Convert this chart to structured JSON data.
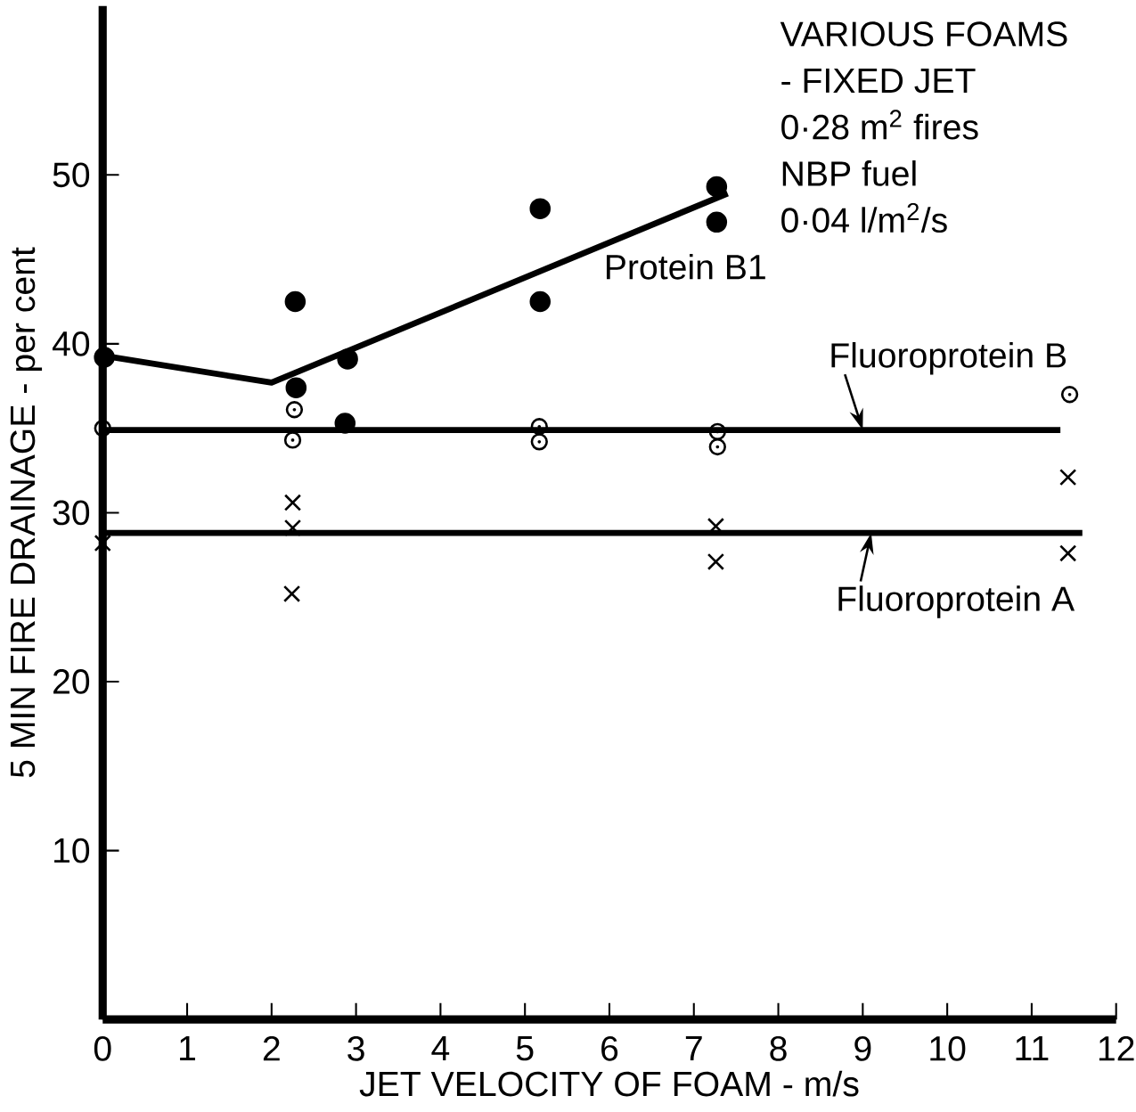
{
  "chart_data": {
    "type": "scatter",
    "title": "VARIOUS FOAMS",
    "subtitle": "- FIXED JET",
    "xlabel": "JET VELOCITY OF FOAM - m/s",
    "ylabel": "5 MIN FIRE DRAINAGE - per cent",
    "xlim": [
      0,
      12
    ],
    "ylim": [
      0,
      60
    ],
    "xticks": [
      0,
      1,
      2,
      3,
      4,
      5,
      6,
      7,
      8,
      9,
      10,
      11,
      12
    ],
    "yticks": [
      10,
      20,
      30,
      40,
      50
    ],
    "series": [
      {
        "marker": "circle",
        "color": "#000000",
        "x": [
          0.02,
          2.28,
          2.29,
          2.9,
          2.87,
          5.18,
          5.18,
          7.27,
          7.27
        ],
        "values": [
          39.2,
          42.5,
          37.4,
          39.1,
          35.3,
          48.0,
          42.5,
          49.3,
          47.2
        ]
      },
      {
        "marker": "circle",
        "color": "#000000",
        "x": [
          0,
          2.27,
          2.25,
          5.17,
          5.17,
          7.28,
          7.28,
          11.45
        ],
        "values": [
          35.0,
          36.1,
          34.3,
          35.1,
          34.2,
          34.8,
          33.9,
          37.0
        ]
      },
      {
        "marker": "cross",
        "color": "#000000",
        "x": [
          0,
          2.25,
          2.25,
          2.24,
          7.26,
          7.26,
          11.43,
          11.43
        ],
        "values": [
          28.2,
          30.6,
          29.1,
          25.2,
          29.2,
          27.1,
          32.1,
          27.6
        ]
      },
      {
        "type": "line",
        "marker": "none",
        "line_style": "solid",
        "color": "#000000",
        "x": [
          0,
          2,
          7.4
        ],
        "values": [
          39.3,
          37.7,
          48.9
        ]
      },
      {
        "type": "line",
        "marker": "none",
        "line_style": "solid",
        "color": "#000000",
        "x": [
          0,
          11.34
        ],
        "values": [
          34.9,
          34.9
        ]
      },
      {
        "type": "line",
        "marker": "none",
        "line_style": "solid",
        "color": "#000000",
        "x": [
          0,
          11.6
        ],
        "values": [
          28.8,
          28.8
        ]
      }
    ],
    "annotations": [
      "0·28 m$^{2}$ fires",
      "NBP fuel",
      "0·04 l/m$^{2}$/s",
      {
        "text": "Protein B1",
        "x": 6.9,
        "y": 47.9
      },
      {
        "text": "Fluoroprotein B",
        "x": 9.0,
        "y": 34.9
      },
      {
        "text": "Fluoroprotein A",
        "x": 9.1,
        "y": 28.8
      }
    ]
  }
}
